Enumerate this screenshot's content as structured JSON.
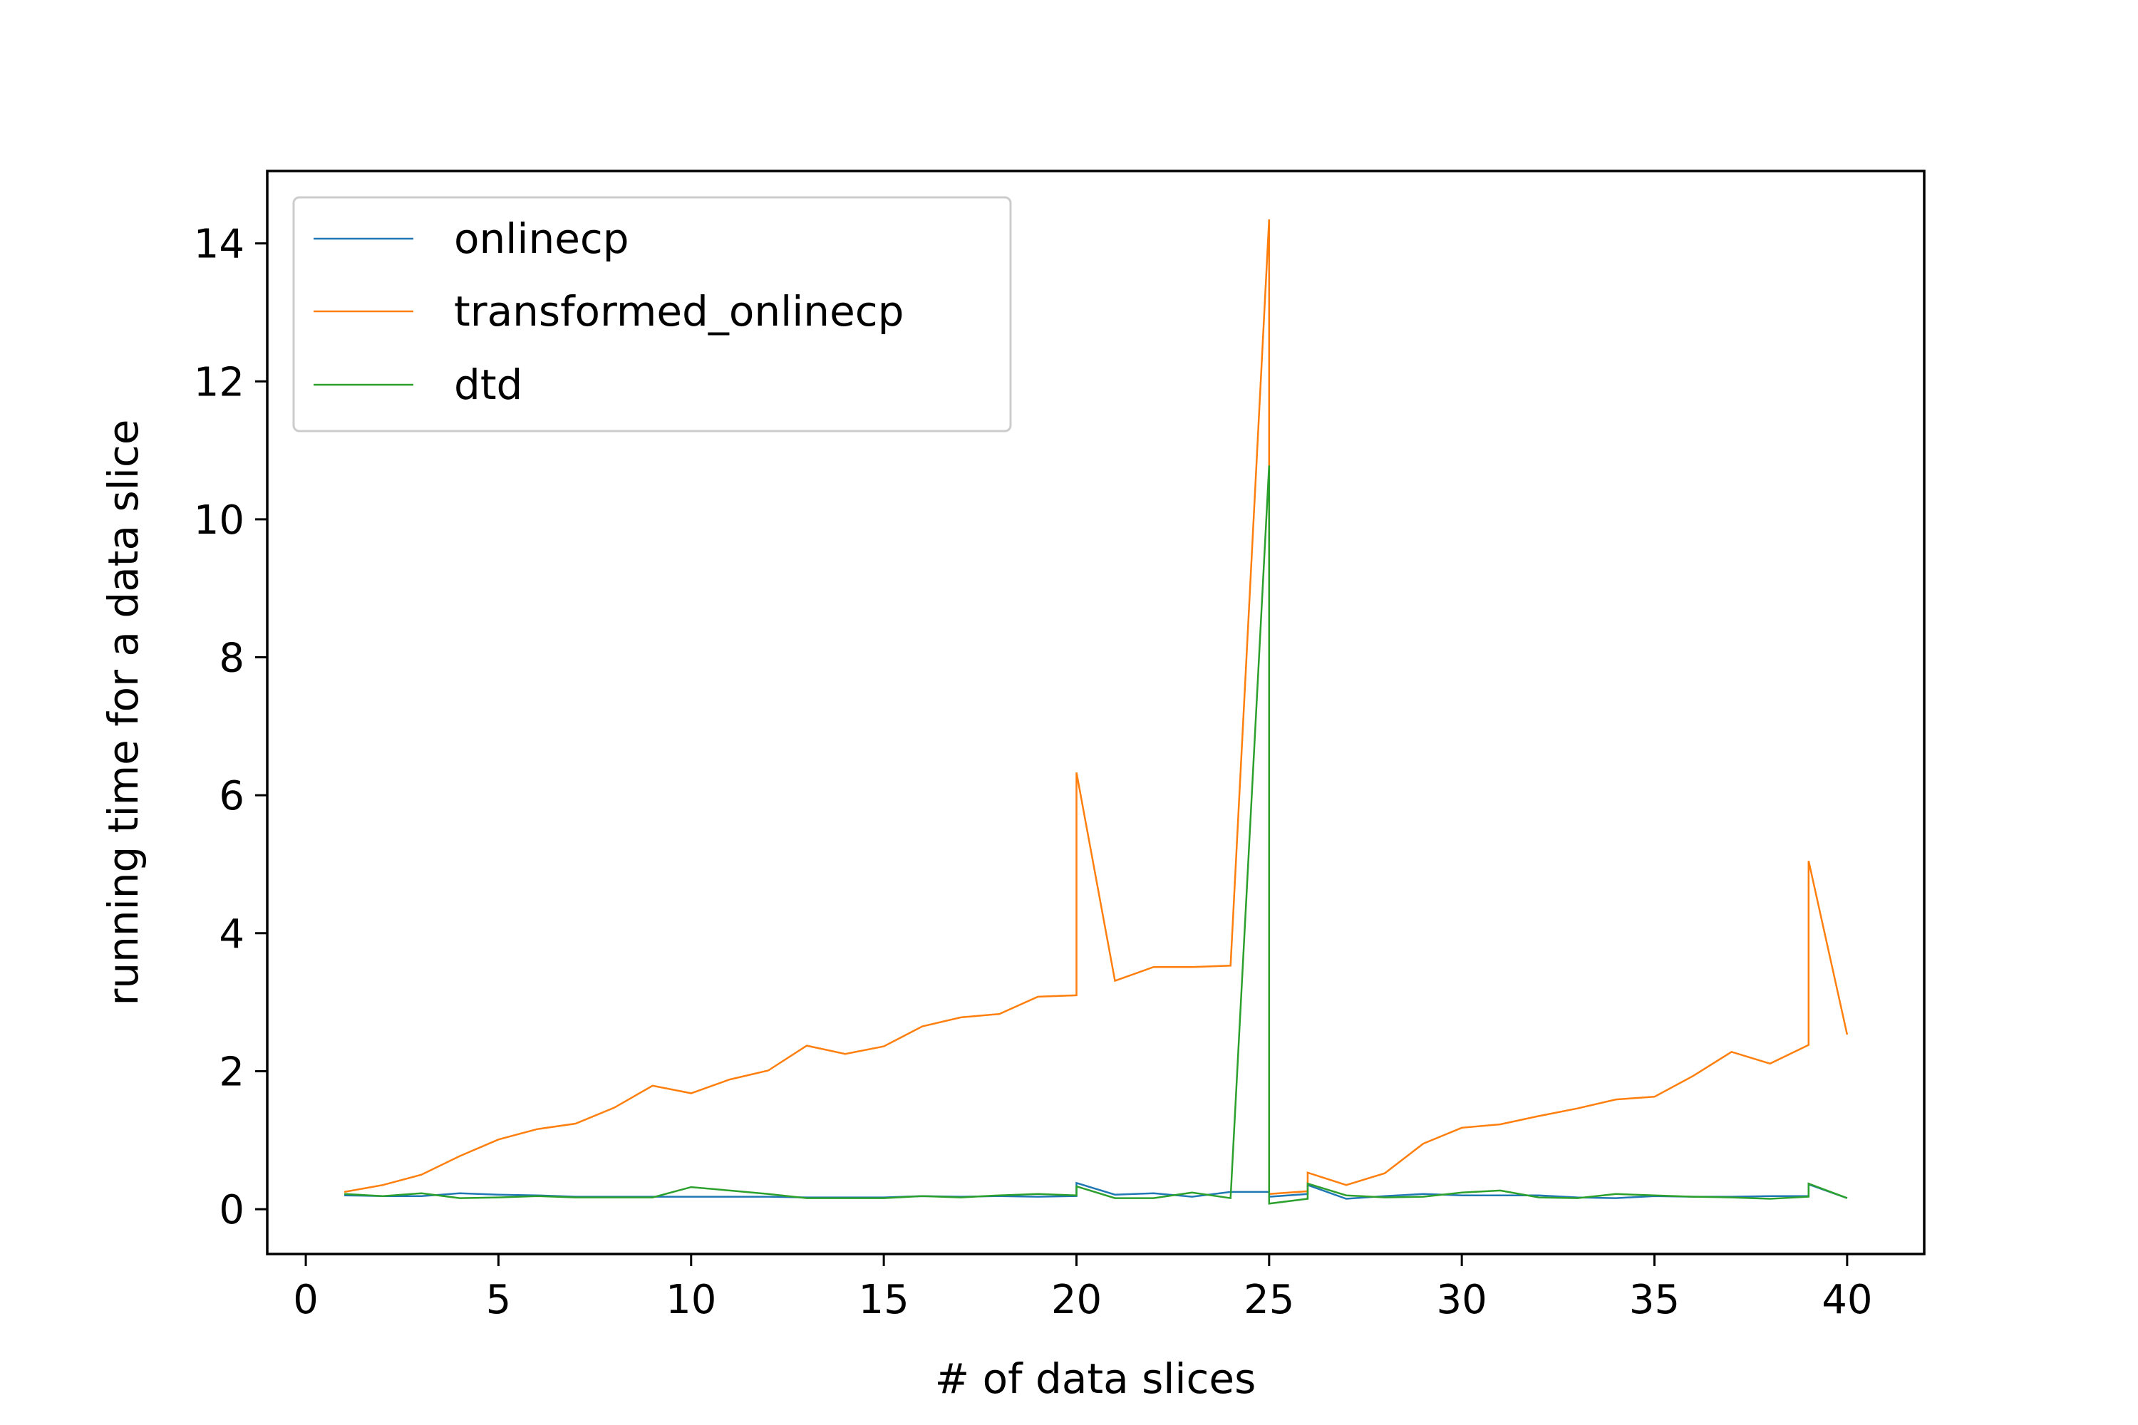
{
  "chart_data": {
    "type": "line",
    "title": "",
    "xlabel": "# of data slices",
    "ylabel": "running time for a data slice",
    "xlim": [
      -1,
      42
    ],
    "ylim": [
      -0.65,
      15.05
    ],
    "xticks": [
      0,
      5,
      10,
      15,
      20,
      25,
      30,
      35,
      40
    ],
    "yticks": [
      0,
      2,
      4,
      6,
      8,
      10,
      12,
      14
    ],
    "grid": false,
    "legend_position": "top-left",
    "series": [
      {
        "name": "onlinecp",
        "color": "#1f77b4",
        "points": [
          [
            1,
            0.2
          ],
          [
            2,
            0.19
          ],
          [
            3,
            0.19
          ],
          [
            4,
            0.23
          ],
          [
            5,
            0.21
          ],
          [
            6,
            0.2
          ],
          [
            7,
            0.18
          ],
          [
            8,
            0.18
          ],
          [
            9,
            0.18
          ],
          [
            10,
            0.18
          ],
          [
            11,
            0.18
          ],
          [
            12,
            0.18
          ],
          [
            13,
            0.17
          ],
          [
            14,
            0.17
          ],
          [
            15,
            0.17
          ],
          [
            16,
            0.19
          ],
          [
            17,
            0.18
          ],
          [
            18,
            0.19
          ],
          [
            19,
            0.18
          ],
          [
            20,
            0.19
          ],
          [
            20,
            0.38
          ],
          [
            21,
            0.21
          ],
          [
            22,
            0.23
          ],
          [
            23,
            0.18
          ],
          [
            24,
            0.25
          ],
          [
            25,
            0.25
          ],
          [
            25,
            0.18
          ],
          [
            26,
            0.22
          ],
          [
            26,
            0.35
          ],
          [
            27,
            0.15
          ],
          [
            28,
            0.19
          ],
          [
            29,
            0.22
          ],
          [
            30,
            0.2
          ],
          [
            31,
            0.2
          ],
          [
            32,
            0.2
          ],
          [
            33,
            0.17
          ],
          [
            34,
            0.16
          ],
          [
            35,
            0.19
          ],
          [
            36,
            0.18
          ],
          [
            37,
            0.18
          ],
          [
            38,
            0.19
          ],
          [
            39,
            0.19
          ],
          [
            39,
            0.36
          ],
          [
            40,
            0.16
          ]
        ]
      },
      {
        "name": "transformed_onlinecp",
        "color": "#ff7f0e",
        "points": [
          [
            1,
            0.25
          ],
          [
            2,
            0.35
          ],
          [
            3,
            0.5
          ],
          [
            4,
            0.77
          ],
          [
            5,
            1.01
          ],
          [
            6,
            1.16
          ],
          [
            7,
            1.24
          ],
          [
            8,
            1.47
          ],
          [
            9,
            1.79
          ],
          [
            10,
            1.68
          ],
          [
            11,
            1.88
          ],
          [
            12,
            2.01
          ],
          [
            13,
            2.37
          ],
          [
            14,
            2.25
          ],
          [
            15,
            2.36
          ],
          [
            16,
            2.65
          ],
          [
            17,
            2.78
          ],
          [
            18,
            2.83
          ],
          [
            19,
            3.08
          ],
          [
            20,
            3.1
          ],
          [
            20,
            6.33
          ],
          [
            21,
            3.31
          ],
          [
            22,
            3.51
          ],
          [
            23,
            3.51
          ],
          [
            24,
            3.53
          ],
          [
            25,
            14.35
          ],
          [
            25,
            0.22
          ],
          [
            26,
            0.26
          ],
          [
            26,
            0.53
          ],
          [
            27,
            0.35
          ],
          [
            28,
            0.52
          ],
          [
            29,
            0.95
          ],
          [
            30,
            1.18
          ],
          [
            31,
            1.23
          ],
          [
            32,
            1.35
          ],
          [
            33,
            1.46
          ],
          [
            34,
            1.59
          ],
          [
            35,
            1.63
          ],
          [
            36,
            1.93
          ],
          [
            37,
            2.28
          ],
          [
            38,
            2.11
          ],
          [
            39,
            2.38
          ],
          [
            39,
            5.05
          ],
          [
            40,
            2.53
          ]
        ]
      },
      {
        "name": "dtd",
        "color": "#2ca02c",
        "points": [
          [
            1,
            0.22
          ],
          [
            2,
            0.19
          ],
          [
            3,
            0.23
          ],
          [
            4,
            0.16
          ],
          [
            5,
            0.17
          ],
          [
            6,
            0.19
          ],
          [
            7,
            0.17
          ],
          [
            8,
            0.17
          ],
          [
            9,
            0.17
          ],
          [
            10,
            0.32
          ],
          [
            11,
            0.27
          ],
          [
            12,
            0.22
          ],
          [
            13,
            0.16
          ],
          [
            14,
            0.16
          ],
          [
            15,
            0.16
          ],
          [
            16,
            0.19
          ],
          [
            17,
            0.17
          ],
          [
            18,
            0.2
          ],
          [
            19,
            0.22
          ],
          [
            20,
            0.2
          ],
          [
            20,
            0.33
          ],
          [
            21,
            0.16
          ],
          [
            22,
            0.16
          ],
          [
            23,
            0.24
          ],
          [
            24,
            0.16
          ],
          [
            25,
            10.78
          ],
          [
            25,
            0.08
          ],
          [
            26,
            0.15
          ],
          [
            26,
            0.37
          ],
          [
            27,
            0.2
          ],
          [
            28,
            0.17
          ],
          [
            29,
            0.18
          ],
          [
            30,
            0.24
          ],
          [
            31,
            0.27
          ],
          [
            32,
            0.17
          ],
          [
            33,
            0.16
          ],
          [
            34,
            0.22
          ],
          [
            35,
            0.2
          ],
          [
            36,
            0.18
          ],
          [
            37,
            0.17
          ],
          [
            38,
            0.15
          ],
          [
            39,
            0.18
          ],
          [
            39,
            0.37
          ],
          [
            40,
            0.16
          ]
        ]
      }
    ]
  }
}
